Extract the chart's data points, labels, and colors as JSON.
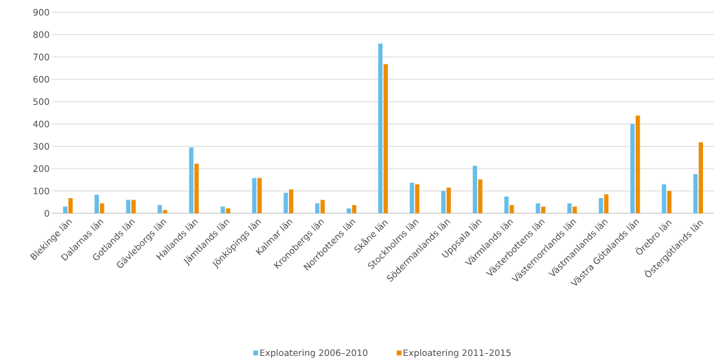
{
  "chart_data": {
    "type": "bar",
    "categories": [
      "Blekinge län",
      "Dalarnas län",
      "Gotlands län",
      "Gävleborgs län",
      "Hallands län",
      "Jämtlands län",
      "Jönköpings län",
      "Kalmar län",
      "Kronobergs län",
      "Norrbottens län",
      "Skåne län",
      "Stockholms län",
      "Södermanlands län",
      "Uppsala län",
      "Värmlands län",
      "Västerbottens län",
      "Västernorrlands län",
      "Västmanlands län",
      "Västra Götalands län",
      "Örebro län",
      "Östergötlands län"
    ],
    "series": [
      {
        "name": "Exploatering 2006–2010",
        "color": "#66bde9",
        "values": [
          30,
          83,
          60,
          37,
          295,
          30,
          158,
          92,
          45,
          22,
          760,
          137,
          100,
          213,
          75,
          45,
          45,
          68,
          400,
          130,
          175
        ]
      },
      {
        "name": "Exploatering 2011–2015",
        "color": "#ef8c00",
        "values": [
          68,
          45,
          60,
          15,
          222,
          22,
          158,
          107,
          60,
          37,
          668,
          130,
          115,
          152,
          37,
          30,
          30,
          85,
          438,
          100,
          318
        ]
      }
    ],
    "ylim": [
      0,
      900
    ],
    "yticks": [
      0,
      100,
      200,
      300,
      400,
      500,
      600,
      700,
      800,
      900
    ],
    "grid": "y",
    "legend": "bottom"
  }
}
